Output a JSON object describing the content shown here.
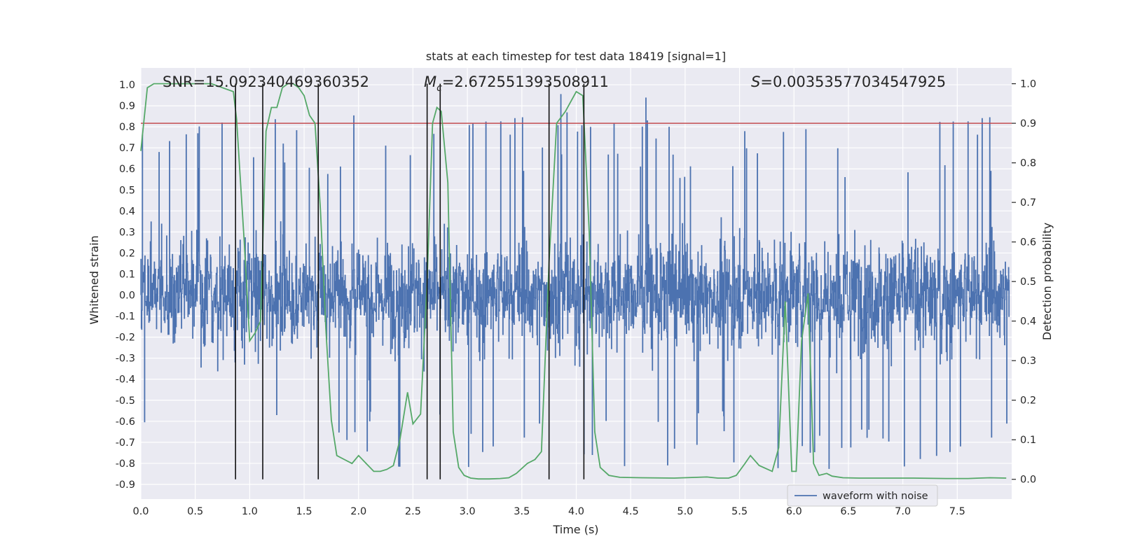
{
  "chart_data": {
    "type": "line",
    "title": "stats at each timestep for test data 18419 [signal=1]",
    "xlabel": "Time (s)",
    "ylabel_left": "Whitened strain",
    "ylabel_right": "Detection probability",
    "xlim": [
      0.0,
      8.0
    ],
    "ylim_left": [
      -0.97,
      1.08
    ],
    "ylim_right": [
      -0.05,
      1.04
    ],
    "x_ticks": [
      "0.0",
      "0.5",
      "1.0",
      "1.5",
      "2.0",
      "2.5",
      "3.0",
      "3.5",
      "4.0",
      "4.5",
      "5.0",
      "5.5",
      "6.0",
      "6.5",
      "7.0",
      "7.5"
    ],
    "y_left_ticks": [
      "1.0",
      "0.9",
      "0.8",
      "0.7",
      "0.6",
      "0.5",
      "0.4",
      "0.3",
      "0.2",
      "0.1",
      "0.0",
      "-0.1",
      "-0.2",
      "-0.3",
      "-0.4",
      "-0.5",
      "-0.6",
      "-0.7",
      "-0.8",
      "-0.9"
    ],
    "y_right_ticks": [
      "1.0",
      "0.9",
      "0.8",
      "0.7",
      "0.6",
      "0.5",
      "0.4",
      "0.3",
      "0.2",
      "0.1",
      "0.0"
    ],
    "grid": true,
    "annotations": {
      "snr": "SNR=15.092340469360352",
      "mc_symbol": "M",
      "mc_sub": "c",
      "mc_value": "=2.672551393508911",
      "s_symbol": "S",
      "s_value": "=0.00353577034547925"
    },
    "legend": {
      "placement": "lower-right",
      "entries": [
        "waveform with noise"
      ]
    },
    "threshold": {
      "value": 0.9,
      "axis": "right",
      "color": "#c44e52"
    },
    "event_markers_x": [
      0.87,
      1.12,
      1.63,
      2.63,
      2.75,
      3.75,
      4.07
    ],
    "series": [
      {
        "name": "waveform with noise",
        "axis": "left",
        "color": "#4c72b0",
        "style": "dense noise, envelope approx -0.87 to 1.0",
        "amplitude_range": [
          -0.87,
          1.0
        ]
      },
      {
        "axis": "right",
        "color": "#55a868",
        "x": [
          0.0,
          0.06,
          0.12,
          0.25,
          0.5,
          0.65,
          0.75,
          0.85,
          0.88,
          0.95,
          1.0,
          1.05,
          1.1,
          1.15,
          1.2,
          1.25,
          1.3,
          1.35,
          1.4,
          1.45,
          1.5,
          1.55,
          1.6,
          1.65,
          1.7,
          1.75,
          1.8,
          1.87,
          1.94,
          2.0,
          2.07,
          2.14,
          2.2,
          2.26,
          2.32,
          2.38,
          2.45,
          2.5,
          2.57,
          2.63,
          2.68,
          2.72,
          2.76,
          2.82,
          2.87,
          2.92,
          2.97,
          3.03,
          3.1,
          3.2,
          3.3,
          3.38,
          3.45,
          3.55,
          3.62,
          3.68,
          3.75,
          3.82,
          3.9,
          4.0,
          4.06,
          4.12,
          4.17,
          4.22,
          4.3,
          4.4,
          4.6,
          4.9,
          5.2,
          5.3,
          5.4,
          5.47,
          5.55,
          5.6,
          5.68,
          5.8,
          5.86,
          5.92,
          5.98,
          6.02,
          6.07,
          6.13,
          6.18,
          6.23,
          6.3,
          6.35,
          6.45,
          6.6,
          6.9,
          7.1,
          7.4,
          7.6,
          7.7,
          7.8,
          7.95
        ],
        "values": [
          0.83,
          0.99,
          1.0,
          1.0,
          1.0,
          1.0,
          0.99,
          0.98,
          0.91,
          0.6,
          0.35,
          0.37,
          0.4,
          0.88,
          0.94,
          0.94,
          0.99,
          1.0,
          1.0,
          0.99,
          0.97,
          0.92,
          0.9,
          0.68,
          0.38,
          0.15,
          0.06,
          0.05,
          0.04,
          0.06,
          0.04,
          0.02,
          0.02,
          0.025,
          0.035,
          0.1,
          0.22,
          0.14,
          0.165,
          0.5,
          0.9,
          0.94,
          0.93,
          0.75,
          0.12,
          0.03,
          0.01,
          0.003,
          0.001,
          0.001,
          0.002,
          0.004,
          0.015,
          0.04,
          0.05,
          0.07,
          0.55,
          0.9,
          0.93,
          0.98,
          0.97,
          0.62,
          0.12,
          0.03,
          0.01,
          0.005,
          0.004,
          0.003,
          0.006,
          0.003,
          0.003,
          0.01,
          0.04,
          0.06,
          0.035,
          0.02,
          0.08,
          0.45,
          0.02,
          0.02,
          0.35,
          0.47,
          0.04,
          0.01,
          0.015,
          0.008,
          0.004,
          0.003,
          0.003,
          0.003,
          0.002,
          0.002,
          0.003,
          0.004,
          0.003
        ]
      }
    ]
  }
}
